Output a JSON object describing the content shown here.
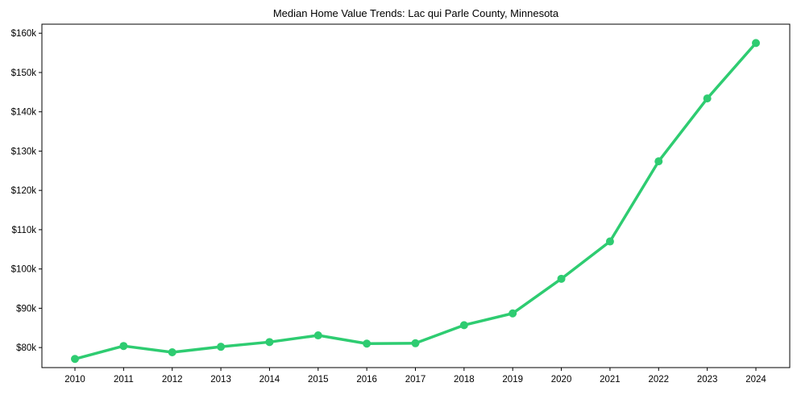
{
  "chart_data": {
    "type": "line",
    "title": "Median Home Value Trends: Lac qui Parle County, Minnesota",
    "xlabel": "",
    "ylabel": "",
    "x": [
      2010,
      2011,
      2012,
      2013,
      2014,
      2015,
      2016,
      2017,
      2018,
      2019,
      2020,
      2021,
      2022,
      2023,
      2024
    ],
    "series": [
      {
        "name": "Median Home Value",
        "color": "#2ecc71",
        "values": [
          77.1,
          80.4,
          78.8,
          80.2,
          81.4,
          83.1,
          81.0,
          81.1,
          85.7,
          88.7,
          97.5,
          107.0,
          127.4,
          143.4,
          157.5
        ]
      }
    ],
    "y_unit": "thousands USD",
    "ylim": [
      74.9,
      162.3
    ],
    "yticks": [
      80,
      90,
      100,
      110,
      120,
      130,
      140,
      150,
      160
    ],
    "ytick_labels": [
      "$80k",
      "$90k",
      "$100k",
      "$110k",
      "$120k",
      "$130k",
      "$140k",
      "$150k",
      "$160k"
    ],
    "xtick_labels": [
      "2010",
      "2011",
      "2012",
      "2013",
      "2014",
      "2015",
      "2016",
      "2017",
      "2018",
      "2019",
      "2020",
      "2021",
      "2022",
      "2023",
      "2024"
    ],
    "grid": false
  }
}
